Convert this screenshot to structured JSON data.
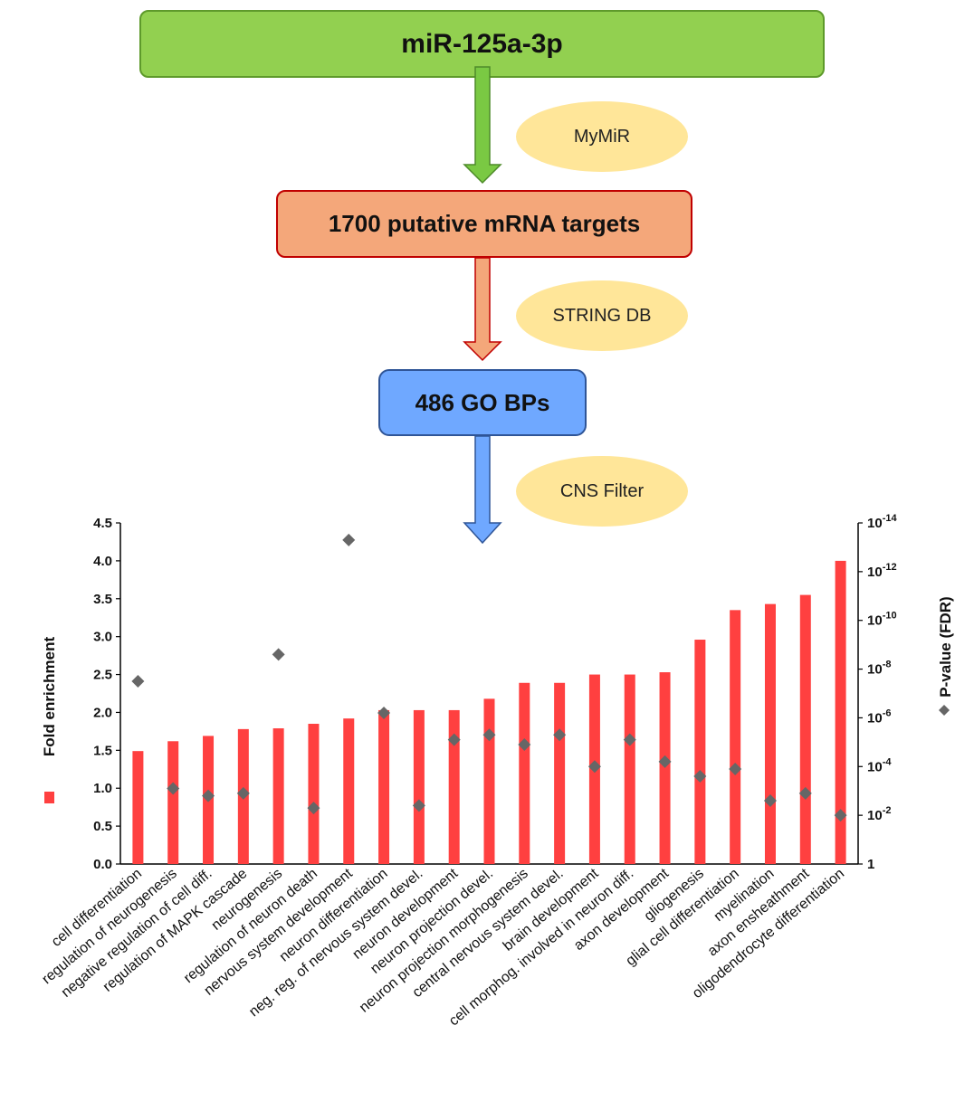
{
  "flow": {
    "mirna": "miR-125a-3p",
    "tool1": "MyMiR",
    "targets": "1700 putative mRNA targets",
    "tool2": "STRING DB",
    "go": "486 GO BPs",
    "tool3": "CNS Filter",
    "colors": {
      "mirna": "#92d050",
      "targets": "#f4a77a",
      "go": "#6fa8ff",
      "pill": "#ffe699"
    }
  },
  "chart_data": {
    "type": "bar",
    "categories": [
      "cell differentiation",
      "regulation of neurogenesis",
      "negative regulation of cell diff.",
      "regulation of MAPK cascade",
      "neurogenesis",
      "regulation of neuron death",
      "nervous system development",
      "neuron differentiation",
      "neg. reg. of nervous system devel.",
      "neuron development",
      "neuron projection devel.",
      "neuron projection morphogenesis",
      "central nervous system devel.",
      "brain development",
      "cell morphog. involved in neuron diff.",
      "axon development",
      "gliogenesis",
      "glial cell differentiation",
      "myelination",
      "axon ensheathment",
      "oligodendrocyte differentiation"
    ],
    "series": [
      {
        "name": "Fold enrichment",
        "axis": "left",
        "marker": "bar",
        "color": "#ff4040",
        "values": [
          1.49,
          1.62,
          1.69,
          1.78,
          1.79,
          1.85,
          1.92,
          2.03,
          2.03,
          2.03,
          2.18,
          2.39,
          2.39,
          2.5,
          2.5,
          2.53,
          2.96,
          3.35,
          3.43,
          3.55,
          4.0
        ]
      },
      {
        "name": "P-value (FDR)",
        "axis": "right",
        "marker": "diamond",
        "color": "#666666",
        "log10_values": [
          -7.5,
          -3.1,
          -2.8,
          -2.9,
          -8.6,
          -2.3,
          -13.3,
          -6.2,
          -2.4,
          -5.1,
          -5.3,
          -4.9,
          -5.3,
          -4.0,
          -5.1,
          -4.2,
          -3.6,
          -3.9,
          -2.6,
          -2.9,
          -2.0
        ]
      }
    ],
    "ylabel": "Fold enrichment",
    "ylabel_right": "P-value (FDR)",
    "ylim": [
      0,
      4.5
    ],
    "yticks": [
      "0.0",
      "0.5",
      "1.0",
      "1.5",
      "2.0",
      "2.5",
      "3.0",
      "3.5",
      "4.0",
      "4.5"
    ],
    "ylim_right_log10": [
      0,
      -14
    ],
    "yticks_right": [
      {
        "base": "1",
        "exp": ""
      },
      {
        "base": "10",
        "exp": "-2"
      },
      {
        "base": "10",
        "exp": "-4"
      },
      {
        "base": "10",
        "exp": "-6"
      },
      {
        "base": "10",
        "exp": "-8"
      },
      {
        "base": "10",
        "exp": "-10"
      },
      {
        "base": "10",
        "exp": "-12"
      },
      {
        "base": "10",
        "exp": "-14"
      }
    ],
    "grid": false
  }
}
